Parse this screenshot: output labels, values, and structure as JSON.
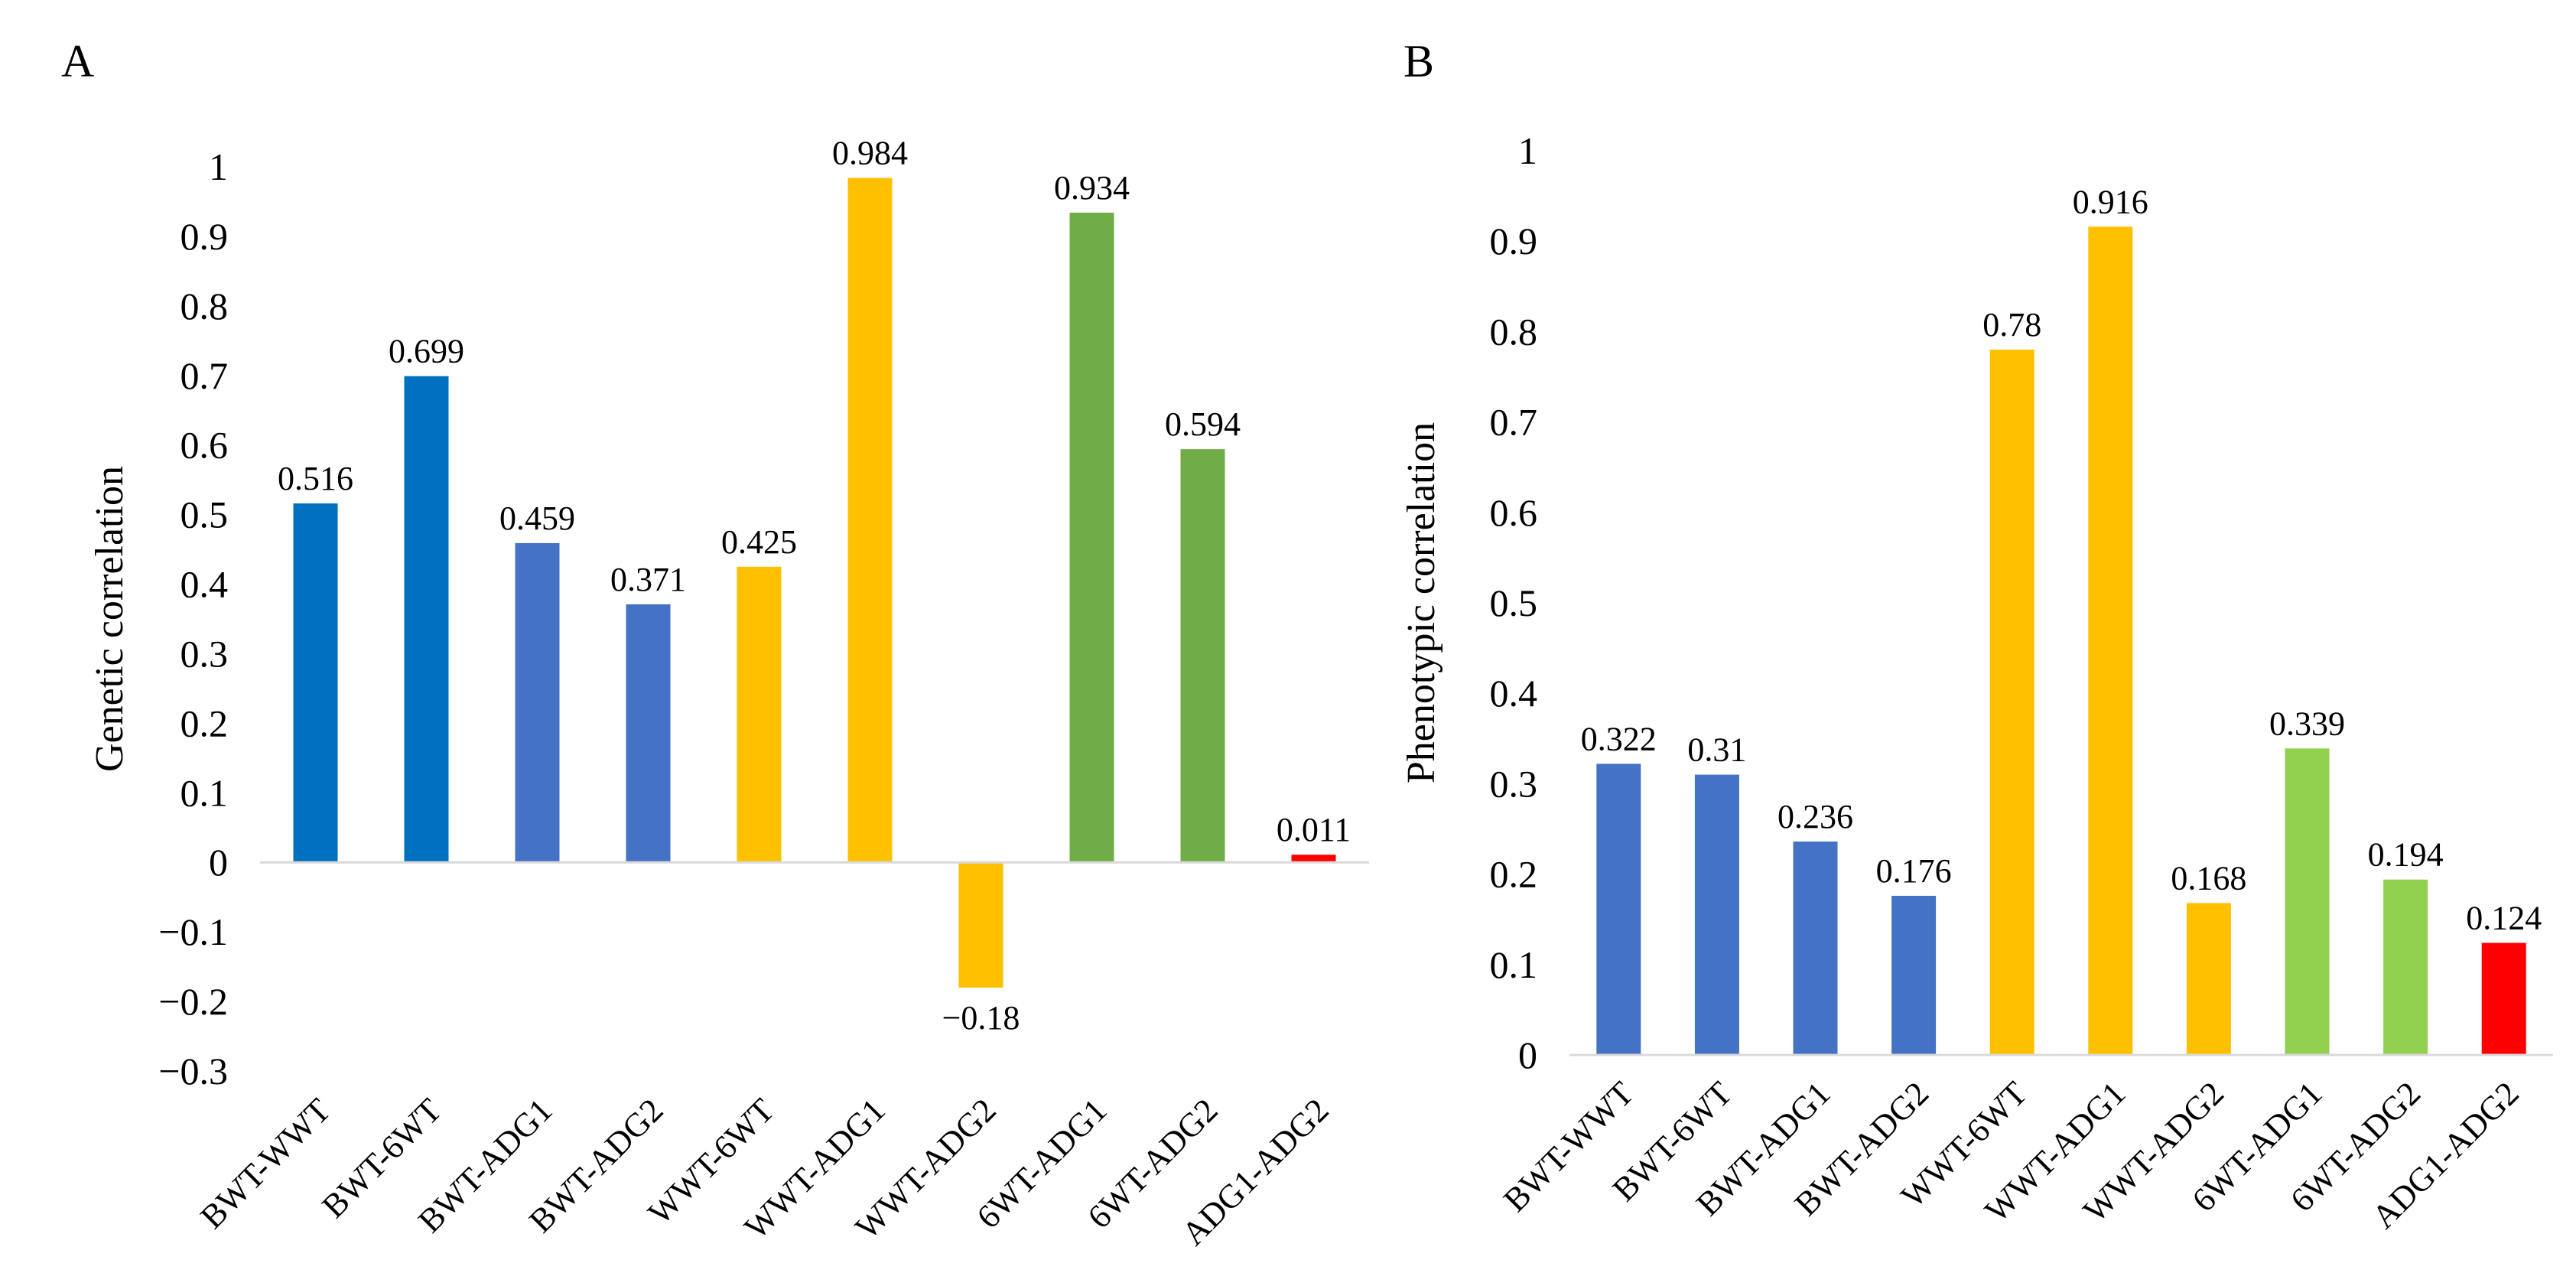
{
  "chart_data": [
    {
      "panel": "A",
      "type": "bar",
      "title": "",
      "xlabel": "",
      "ylabel": "Genetic  correlation",
      "ylim": [
        -0.3,
        1
      ],
      "yticks": [
        -0.3,
        -0.2,
        -0.1,
        0,
        0.1,
        0.2,
        0.3,
        0.4,
        0.5,
        0.6,
        0.7,
        0.8,
        0.9,
        1
      ],
      "ytick_labels": [
        "−0.3",
        "−0.2",
        "−0.1",
        "0",
        "0.1",
        "0.2",
        "0.3",
        "0.4",
        "0.5",
        "0.6",
        "0.7",
        "0.8",
        "0.9",
        "1"
      ],
      "grid": false,
      "categories": [
        "BWT-WWT",
        "BWT-6WT",
        "BWT-ADG1",
        "BWT-ADG2",
        "WWT-6WT",
        "WWT-ADG1",
        "WWT-ADG2",
        "6WT-ADG1",
        "6WT-ADG2",
        "ADG1-ADG2"
      ],
      "values": [
        0.516,
        0.699,
        0.459,
        0.371,
        0.425,
        0.984,
        -0.18,
        0.934,
        0.594,
        0.011
      ],
      "value_labels": [
        "0.516",
        "0.699",
        "0.459",
        "0.371",
        "0.425",
        "0.984",
        "−0.18",
        "0.934",
        "0.594",
        "0.011"
      ],
      "colors": [
        "#0070C0",
        "#0070C0",
        "#4472C4",
        "#4472C4",
        "#FFC000",
        "#FFC000",
        "#FFC000",
        "#70AD47",
        "#70AD47",
        "#FF0000"
      ]
    },
    {
      "panel": "B",
      "type": "bar",
      "title": "",
      "xlabel": "",
      "ylabel": "Phenotypic  correlation",
      "ylim": [
        0,
        1
      ],
      "yticks": [
        0,
        0.1,
        0.2,
        0.3,
        0.4,
        0.5,
        0.6,
        0.7,
        0.8,
        0.9,
        1
      ],
      "ytick_labels": [
        "0",
        "0.1",
        "0.2",
        "0.3",
        "0.4",
        "0.5",
        "0.6",
        "0.7",
        "0.8",
        "0.9",
        "1"
      ],
      "grid": false,
      "categories": [
        "BWT-WWT",
        "BWT-6WT",
        "BWT-ADG1",
        "BWT-ADG2",
        "WWT-6WT",
        "WWT-ADG1",
        "WWT-ADG2",
        "6WT-ADG1",
        "6WT-ADG2",
        "ADG1-ADG2"
      ],
      "values": [
        0.322,
        0.31,
        0.236,
        0.176,
        0.78,
        0.916,
        0.168,
        0.339,
        0.194,
        0.124
      ],
      "value_labels": [
        "0.322",
        "0.31",
        "0.236",
        "0.176",
        "0.78",
        "0.916",
        "0.168",
        "0.339",
        "0.194",
        "0.124"
      ],
      "colors": [
        "#4472C4",
        "#4472C4",
        "#4472C4",
        "#4472C4",
        "#FFC000",
        "#FFC000",
        "#FFC000",
        "#92D050",
        "#92D050",
        "#FF0000"
      ]
    }
  ]
}
